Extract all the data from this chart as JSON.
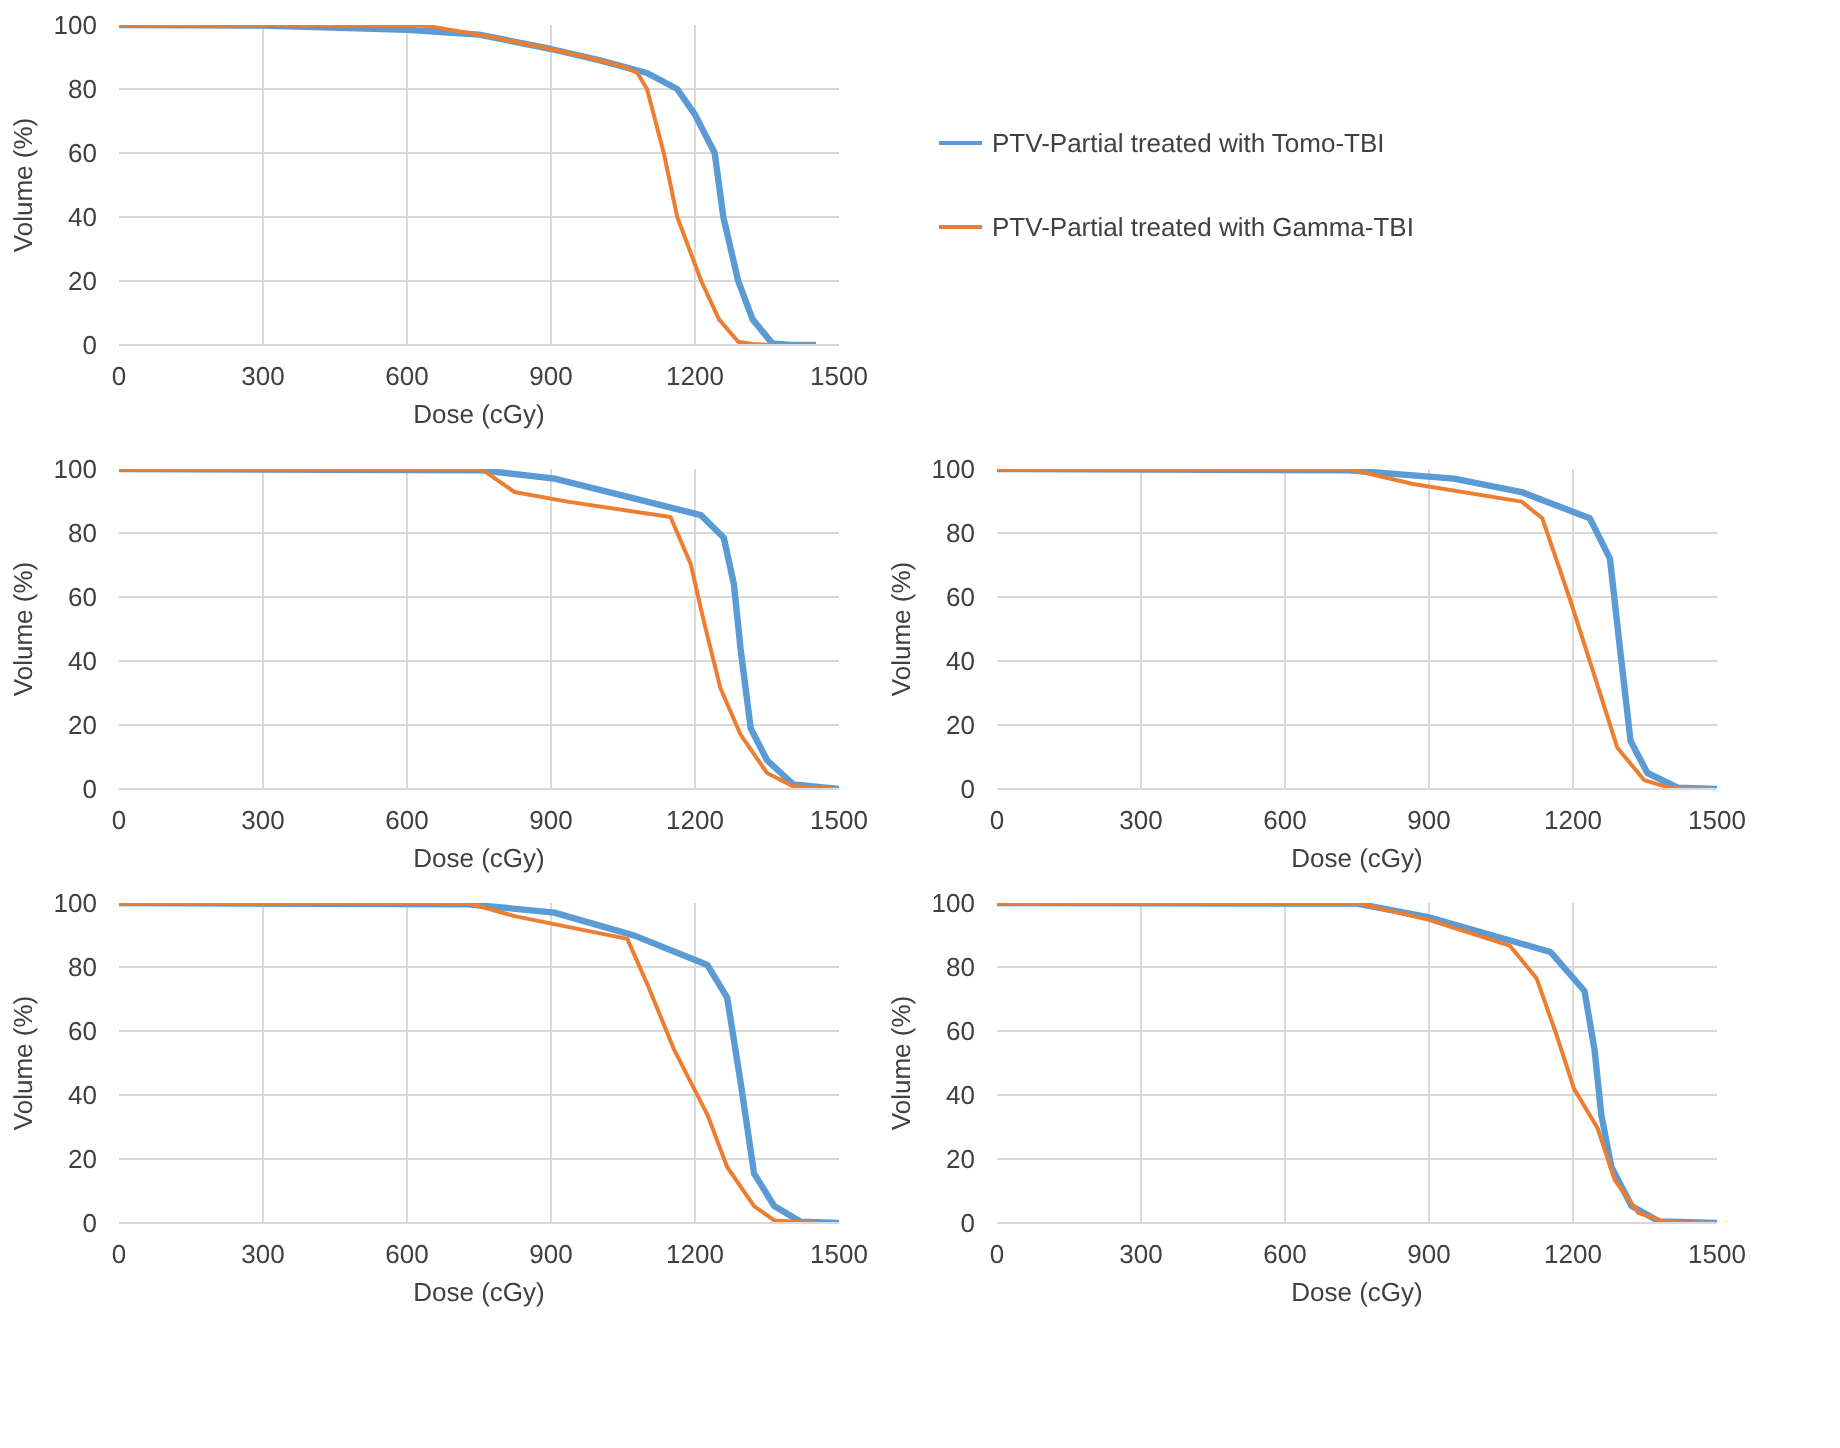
{
  "chart_data": [
    {
      "type": "line",
      "xlabel": "Dose (cGy)",
      "ylabel": "Volume (%)",
      "xlim": [
        0,
        1500
      ],
      "ylim": [
        0,
        100
      ],
      "xticks": [
        0,
        300,
        600,
        900,
        1200,
        1500
      ],
      "yticks": [
        0,
        20,
        40,
        60,
        80,
        100
      ],
      "grid": true,
      "legend": "right",
      "series": [
        {
          "name": "PTV-Partial treated with Tomo-TBI",
          "color": "#5b9bd5",
          "x": [
            0,
            300,
            600,
            750,
            900,
            1000,
            1100,
            1163,
            1200,
            1241,
            1259,
            1290,
            1320,
            1361,
            1400,
            1452
          ],
          "values": [
            100,
            99.8,
            98.5,
            97,
            92.5,
            89,
            85,
            80,
            72,
            60,
            40,
            20,
            8,
            0.5,
            0,
            0
          ]
        },
        {
          "name": "PTV-Partial treated with Gamma-TBI",
          "color": "#ed7d31",
          "x": [
            0,
            620,
            650,
            750,
            900,
            1000,
            1050,
            1080,
            1100,
            1135,
            1163,
            1213,
            1250,
            1290,
            1320,
            1360
          ],
          "values": [
            100,
            100,
            99.5,
            97,
            92.5,
            89,
            87,
            85,
            80,
            60,
            40,
            20,
            8,
            1,
            0.3,
            0
          ]
        }
      ]
    },
    {
      "type": "line",
      "xlabel": "Dose (cGy)",
      "ylabel": "Volume (%)",
      "xlim": [
        0,
        1500
      ],
      "ylim": [
        0,
        100
      ],
      "xticks": [
        0,
        300,
        600,
        900,
        1200,
        1500
      ],
      "yticks": [
        0,
        20,
        40,
        60,
        80,
        100
      ],
      "grid": true,
      "series": [
        {
          "color": "#5b9bd5",
          "x": [
            0,
            755,
            907,
            1073,
            1212,
            1260,
            1281,
            1295,
            1316,
            1350,
            1405,
            1500
          ],
          "values": [
            100,
            99.6,
            97,
            90.8,
            85.6,
            78.5,
            64,
            43.7,
            19,
            9,
            1.4,
            0
          ]
        },
        {
          "color": "#ed7d31",
          "x": [
            0,
            755,
            824,
            934,
            1149,
            1191,
            1219,
            1253,
            1295,
            1350,
            1405,
            1500
          ],
          "values": [
            100,
            100,
            92.8,
            89.8,
            85,
            70.3,
            52,
            31.5,
            17,
            5,
            0.8,
            0
          ]
        }
      ]
    },
    {
      "type": "line",
      "xlabel": "Dose (cGy)",
      "ylabel": "Volume (%)",
      "xlim": [
        0,
        1500
      ],
      "ylim": [
        0,
        100
      ],
      "xticks": [
        0,
        300,
        600,
        900,
        1200,
        1500
      ],
      "yticks": [
        0,
        20,
        40,
        60,
        80,
        100
      ],
      "grid": true,
      "series": [
        {
          "color": "#5b9bd5",
          "x": [
            0,
            733,
            952,
            1093,
            1235,
            1277,
            1298,
            1320,
            1355,
            1418,
            1500
          ],
          "values": [
            100,
            99.6,
            97,
            92.8,
            84.6,
            72,
            43.7,
            15,
            5,
            0.4,
            0
          ]
        },
        {
          "color": "#ed7d31",
          "x": [
            0,
            733,
            867,
            1093,
            1136,
            1192,
            1249,
            1292,
            1348,
            1405,
            1500
          ],
          "values": [
            100,
            100,
            95.3,
            89.8,
            84.6,
            60,
            33.4,
            13,
            2.8,
            0.2,
            0
          ]
        }
      ]
    },
    {
      "type": "line",
      "xlabel": "Dose (cGy)",
      "ylabel": "Volume (%)",
      "xlim": [
        0,
        1500
      ],
      "ylim": [
        0,
        100
      ],
      "xticks": [
        0,
        300,
        600,
        900,
        1200,
        1500
      ],
      "yticks": [
        0,
        20,
        40,
        60,
        80,
        100
      ],
      "grid": true,
      "series": [
        {
          "color": "#5b9bd5",
          "x": [
            0,
            727,
            907,
            1074,
            1226,
            1267,
            1295,
            1323,
            1365,
            1420,
            1500
          ],
          "values": [
            100,
            99.6,
            97,
            89.8,
            80.6,
            70.4,
            44,
            15.5,
            5.3,
            0.4,
            0
          ]
        },
        {
          "color": "#ed7d31",
          "x": [
            0,
            727,
            824,
            1059,
            1101,
            1157,
            1226,
            1267,
            1323,
            1365,
            1454
          ],
          "values": [
            100,
            100,
            95.9,
            88.8,
            74.5,
            54,
            33.8,
            17.5,
            5.3,
            0.8,
            0
          ]
        }
      ]
    },
    {
      "type": "line",
      "xlabel": "Dose (cGy)",
      "ylabel": "Volume (%)",
      "xlim": [
        0,
        1500
      ],
      "ylim": [
        0,
        100
      ],
      "xticks": [
        0,
        300,
        600,
        900,
        1200,
        1500
      ],
      "yticks": [
        0,
        20,
        40,
        60,
        80,
        100
      ],
      "grid": true,
      "series": [
        {
          "color": "#5b9bd5",
          "x": [
            0,
            750,
            898,
            1153,
            1224,
            1245,
            1259,
            1280,
            1322,
            1379,
            1500
          ],
          "values": [
            100,
            99.8,
            95.6,
            84.7,
            72.5,
            54,
            33.8,
            17.5,
            5.3,
            0.5,
            0
          ]
        },
        {
          "color": "#ed7d31",
          "x": [
            0,
            750,
            898,
            1068,
            1124,
            1167,
            1202,
            1251,
            1287,
            1336,
            1393,
            1500
          ],
          "values": [
            100,
            100,
            94.8,
            86.7,
            76.5,
            58.2,
            42,
            29.7,
            13.4,
            3.2,
            0.3,
            0
          ]
        }
      ]
    }
  ]
}
